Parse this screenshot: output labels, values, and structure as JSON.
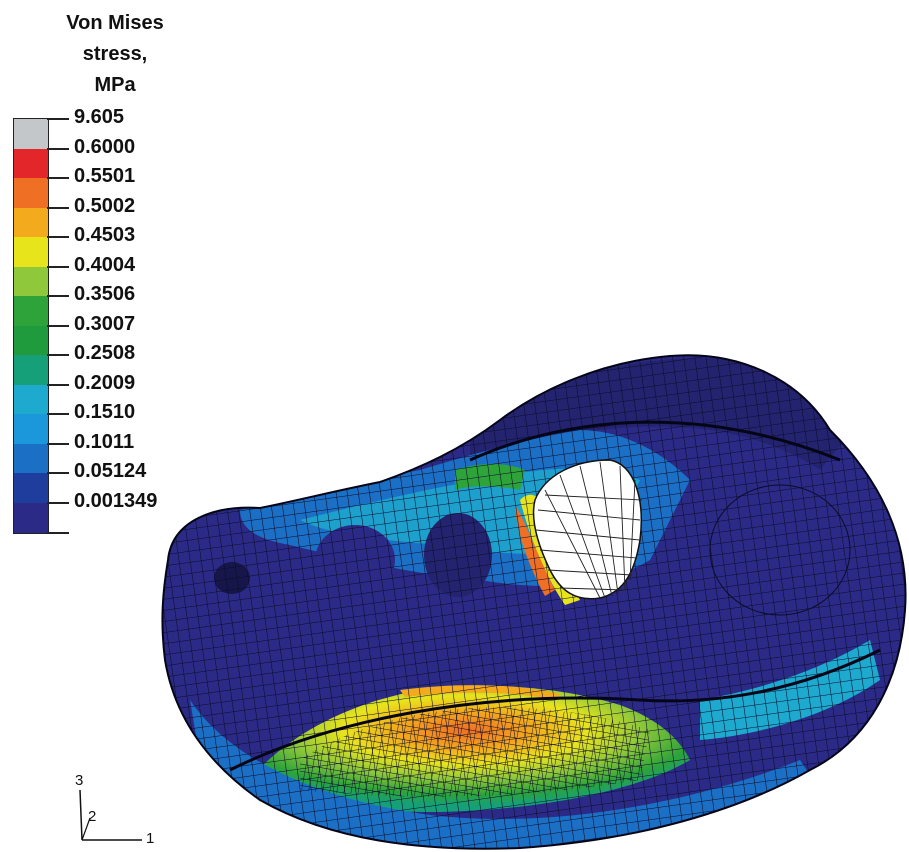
{
  "legend": {
    "title_lines": [
      "Von Mises",
      "stress,",
      "MPa"
    ],
    "entries": [
      {
        "label": "9.605",
        "color": "#c4c7ca"
      },
      {
        "label": "0.6000",
        "color": "#e3262a"
      },
      {
        "label": "0.5501",
        "color": "#ef6f24"
      },
      {
        "label": "0.5002",
        "color": "#f3aa1c"
      },
      {
        "label": "0.4503",
        "color": "#e8e41c"
      },
      {
        "label": "0.4004",
        "color": "#8fc83a"
      },
      {
        "label": "0.3506",
        "color": "#2ea33a"
      },
      {
        "label": "0.3007",
        "color": "#1f9a3c"
      },
      {
        "label": "0.2508",
        "color": "#15a079"
      },
      {
        "label": "0.2009",
        "color": "#1ea9cf"
      },
      {
        "label": "0.1510",
        "color": "#1b97dc"
      },
      {
        "label": "0.1011",
        "color": "#1b6fc4"
      },
      {
        "label": "0.05124",
        "color": "#1f3d9c"
      },
      {
        "label": "0.001349",
        "color": "#2b2a86"
      }
    ]
  },
  "axes": {
    "label_1": "1",
    "label_2": "2",
    "label_3": "3"
  }
}
